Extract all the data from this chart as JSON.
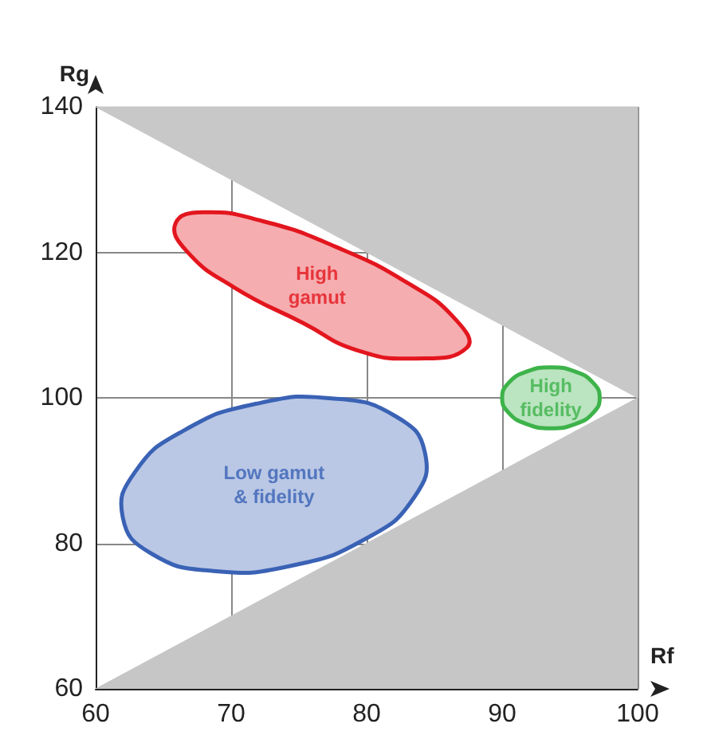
{
  "chart_data": {
    "type": "line",
    "xlabel": "Rf",
    "ylabel": "Rg",
    "xlim": [
      60,
      100
    ],
    "xticks": [
      60,
      70,
      80,
      90,
      100
    ],
    "ylim": [
      60,
      140
    ],
    "yticks": [
      60,
      80,
      100,
      120,
      140
    ],
    "grid": true,
    "legend": false,
    "marker": "none",
    "series": [
      {
        "type": "area",
        "color": "#c8c8c8",
        "x": [
          60,
          100,
          100
        ],
        "values": [
          140,
          100,
          140
        ]
      },
      {
        "type": "area",
        "color": "#c6c6c6",
        "x": [
          60,
          100
        ],
        "values": [
          60,
          100
        ]
      },
      {
        "type": "area",
        "color": "#e3161e",
        "x": [
          87.4,
          83.6,
          79.2,
          75.4,
          70.2,
          66.7,
          65.9,
          67.9,
          72.3,
          77.8,
          83.1,
          86.6
        ],
        "values": [
          106.9,
          105.4,
          106.6,
          110.2,
          115.2,
          120.2,
          124.0,
          125.5,
          124.3,
          120.7,
          115.7,
          110.7
        ]
      },
      {
        "type": "area",
        "color": "#3a62b5",
        "x": [
          84.3,
          83.5,
          79.9,
          74.4,
          68.7,
          64.1,
          62.0,
          62.9,
          66.5,
          71.9,
          77.6,
          82.2
        ],
        "values": [
          92.5,
          86.3,
          80.6,
          76.9,
          76.2,
          78.6,
          83.6,
          89.8,
          95.5,
          99.2,
          99.9,
          97.4
        ]
      },
      {
        "type": "area",
        "color": "#3db34a",
        "x": [
          97.2,
          96.7,
          95.4,
          93.6,
          91.8,
          90.5,
          90.0,
          90.5,
          91.8,
          93.6,
          95.4,
          96.7
        ],
        "values": [
          100.0,
          97.9,
          96.4,
          95.8,
          96.4,
          97.9,
          100.0,
          102.1,
          103.6,
          104.2,
          103.6,
          102.1
        ]
      }
    ],
    "annotations": [
      "High\ngamut",
      "Low gamut\n& fidelity",
      "High\nfidelity"
    ]
  }
}
